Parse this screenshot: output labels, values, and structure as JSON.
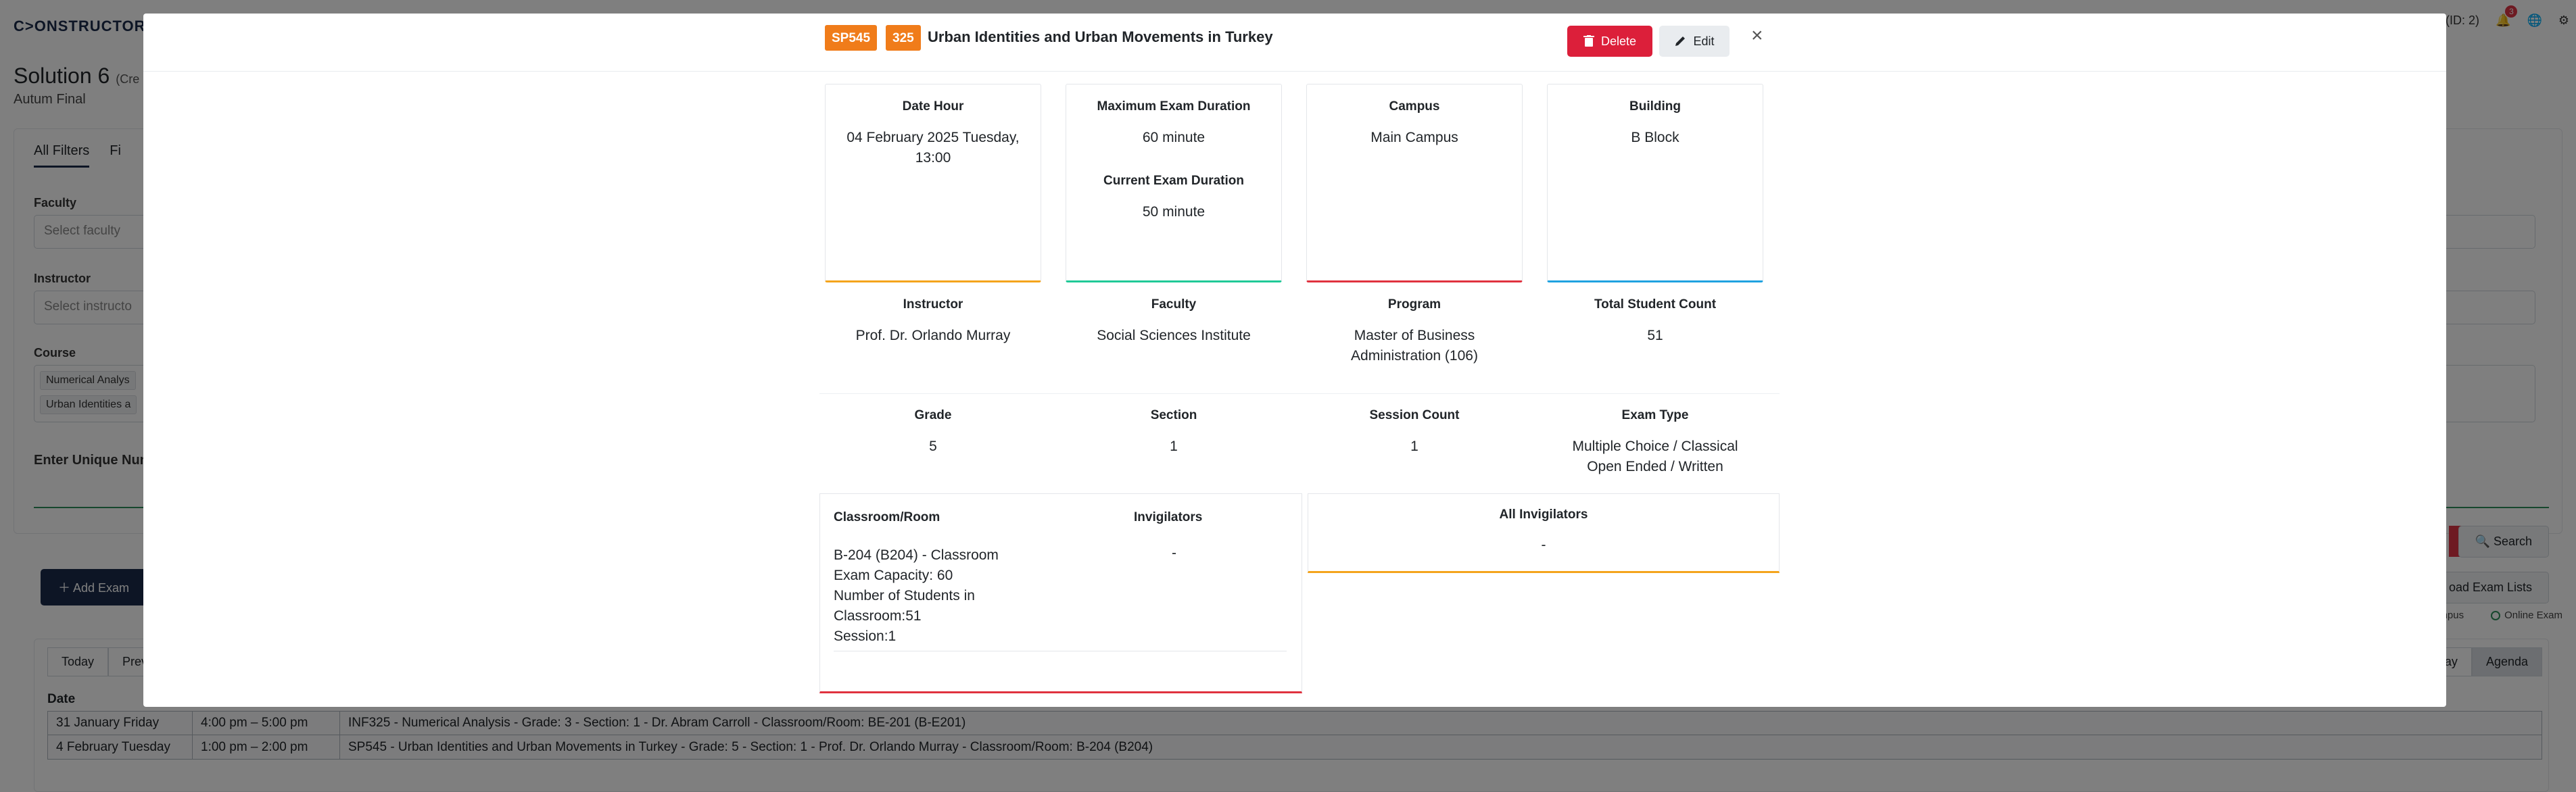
{
  "app": {
    "logo": "C>ONSTRUCTOR",
    "user_id": "(ID: 2)",
    "notification_count": "3",
    "solution_title": "Solution 6",
    "solution_title_suffix": "(Cre",
    "solution_subtitle": "Autum Final"
  },
  "filters": {
    "tabs": [
      "All Filters",
      "Fi"
    ],
    "faculty_label": "Faculty",
    "faculty_placeholder": "Select faculty",
    "instructor_label": "Instructor",
    "instructor_placeholder": "Select instructo",
    "course_label": "Course",
    "course_chips": [
      "Numerical Analys",
      "Urban Identities a"
    ],
    "unique_label": "Enter Unique Num",
    "search_label": "Search",
    "download_label": "oad Exam Lists",
    "legend": [
      "mpus",
      "Online Exam"
    ]
  },
  "toolbar": {
    "add_exam_label": "Add Exam"
  },
  "calendar": {
    "left_buttons": [
      "Today",
      "Prev"
    ],
    "right_buttons": [
      "ay",
      "Agenda"
    ],
    "date_header": "Date",
    "rows": [
      {
        "date": "31 January Friday",
        "time": "4:00 pm – 5:00 pm",
        "event": "INF325 - Numerical Analysis - Grade: 3 - Section: 1 - Dr. Abram Carroll - Classroom/Room: BE-201 (B-E201)"
      },
      {
        "date": "4 February Tuesday",
        "time": "1:00 pm – 2:00 pm",
        "event": "SP545 - Urban Identities and Urban Movements in Turkey - Grade: 5 - Section: 1 - Prof. Dr. Orlando Murray - Classroom/Room: B-204 (B204)"
      }
    ]
  },
  "modal": {
    "code": "SP545",
    "number": "325",
    "title": "Urban Identities and Urban Movements in Turkey",
    "delete_label": "Delete",
    "edit_label": "Edit",
    "close_symbol": "×",
    "cards": [
      {
        "label": "Date Hour",
        "value": "04 February 2025 Tuesday, 13:00",
        "accent": "#f4a41c"
      },
      {
        "label": "Maximum Exam Duration",
        "value": "60 minute",
        "label2": "Current Exam Duration",
        "value2": "50 minute",
        "accent": "#20c997"
      },
      {
        "label": "Campus",
        "value": "Main Campus",
        "accent": "#e0323f"
      },
      {
        "label": "Building",
        "value": "B Block",
        "accent": "#1fa2e0"
      }
    ],
    "row2": [
      {
        "label": "Instructor",
        "value": "Prof. Dr. Orlando Murray"
      },
      {
        "label": "Faculty",
        "value": "Social Sciences Institute"
      },
      {
        "label": "Program",
        "value": "Master of Business Administration (106)"
      },
      {
        "label": "Total Student Count",
        "value": "51"
      }
    ],
    "row3": [
      {
        "label": "Grade",
        "value": "5"
      },
      {
        "label": "Section",
        "value": "1"
      },
      {
        "label": "Session Count",
        "value": "1"
      },
      {
        "label": "Exam Type",
        "value": "Multiple Choice / Classical Open Ended / Written"
      }
    ],
    "room": {
      "label": "Classroom/Room",
      "invigilators_label": "Invigilators",
      "lines": [
        "B-204 (B204) - Classroom",
        "Exam Capacity: 60",
        "Number of Students in Classroom:51",
        "Session:1"
      ],
      "invigilators_value": "-"
    },
    "all_invigilators": {
      "label": "All Invigilators",
      "value": "-"
    }
  }
}
